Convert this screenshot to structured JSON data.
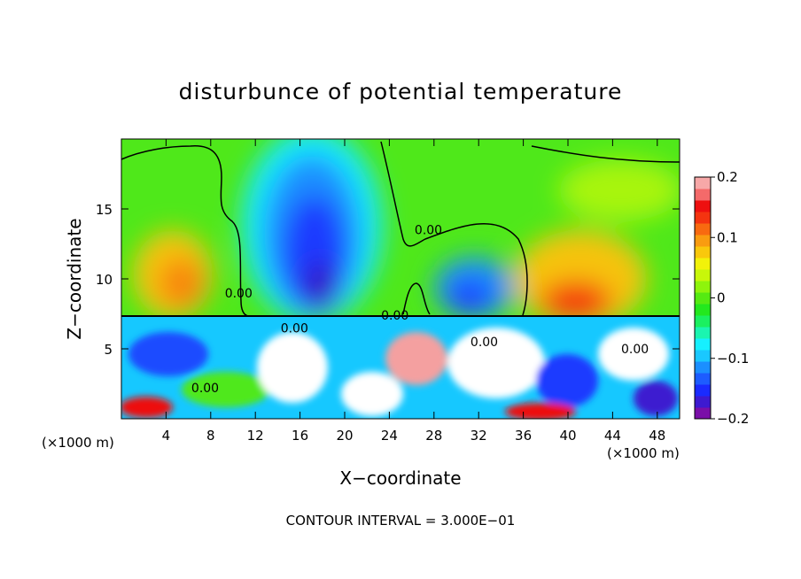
{
  "chart_data": {
    "type": "heatmap",
    "title": "disturbunce of potential temperature",
    "xlabel": "X−coordinate",
    "ylabel": "Z−coordinate",
    "x_unit_left": "(×1000 m)",
    "x_unit_right": "(×1000 m)",
    "footer": "CONTOUR INTERVAL = 3.000E−01",
    "xlim": [
      0,
      50
    ],
    "ylim": [
      0,
      20
    ],
    "x_ticks": [
      {
        "value": 4,
        "label": "4"
      },
      {
        "value": 8,
        "label": "8"
      },
      {
        "value": 12,
        "label": "12"
      },
      {
        "value": 16,
        "label": "16"
      },
      {
        "value": 20,
        "label": "20"
      },
      {
        "value": 24,
        "label": "24"
      },
      {
        "value": 28,
        "label": "28"
      },
      {
        "value": 32,
        "label": "32"
      },
      {
        "value": 36,
        "label": "36"
      },
      {
        "value": 40,
        "label": "40"
      },
      {
        "value": 44,
        "label": "44"
      },
      {
        "value": 48,
        "label": "48"
      }
    ],
    "y_ticks": [
      {
        "value": 5,
        "label": "5"
      },
      {
        "value": 10,
        "label": "10"
      },
      {
        "value": 15,
        "label": "15"
      }
    ],
    "contour_level_label": "0.00",
    "contour_label_positions": [
      {
        "x": 10.5,
        "y": 9.0
      },
      {
        "x": 27.5,
        "y": 13.5
      },
      {
        "x": 24.5,
        "y": 7.4
      },
      {
        "x": 15.5,
        "y": 6.5
      },
      {
        "x": 7.5,
        "y": 2.2
      },
      {
        "x": 32.5,
        "y": 5.5
      },
      {
        "x": 46.0,
        "y": 5.0
      }
    ],
    "colorbar": {
      "range": [
        -0.2,
        0.2
      ],
      "tick_labels": [
        {
          "value": 0.2,
          "label": "0.2"
        },
        {
          "value": 0.1,
          "label": "0.1"
        },
        {
          "value": 0,
          "label": "0"
        },
        {
          "value": -0.1,
          "label": "−0.1"
        },
        {
          "value": -0.2,
          "label": "−0.2"
        }
      ],
      "colors": [
        "#7a0fa8",
        "#3d1ad0",
        "#1a2bff",
        "#1d5cff",
        "#1b8fff",
        "#1ac8ff",
        "#16f0ff",
        "#1bf5b0",
        "#1bf060",
        "#23e81e",
        "#55ea12",
        "#8ef40c",
        "#c8f70a",
        "#f2f20a",
        "#f9c80c",
        "#f99c10",
        "#f86a10",
        "#f43410",
        "#ee1010",
        "#f46a6a",
        "#f7a8a8"
      ]
    },
    "field_description_points": [
      {
        "x": 5.0,
        "z": 10.5,
        "value": 0.1
      },
      {
        "x": 18.0,
        "z": 10.5,
        "value": -0.2
      },
      {
        "x": 18.5,
        "z": 15.0,
        "value": -0.13
      },
      {
        "x": 31.0,
        "z": 9.5,
        "value": -0.12
      },
      {
        "x": 41.0,
        "z": 9.0,
        "value": 0.14
      },
      {
        "x": 45.0,
        "z": 16.0,
        "value": 0.03
      },
      {
        "x": 28.0,
        "z": 17.0,
        "value": 0.0
      }
    ]
  }
}
